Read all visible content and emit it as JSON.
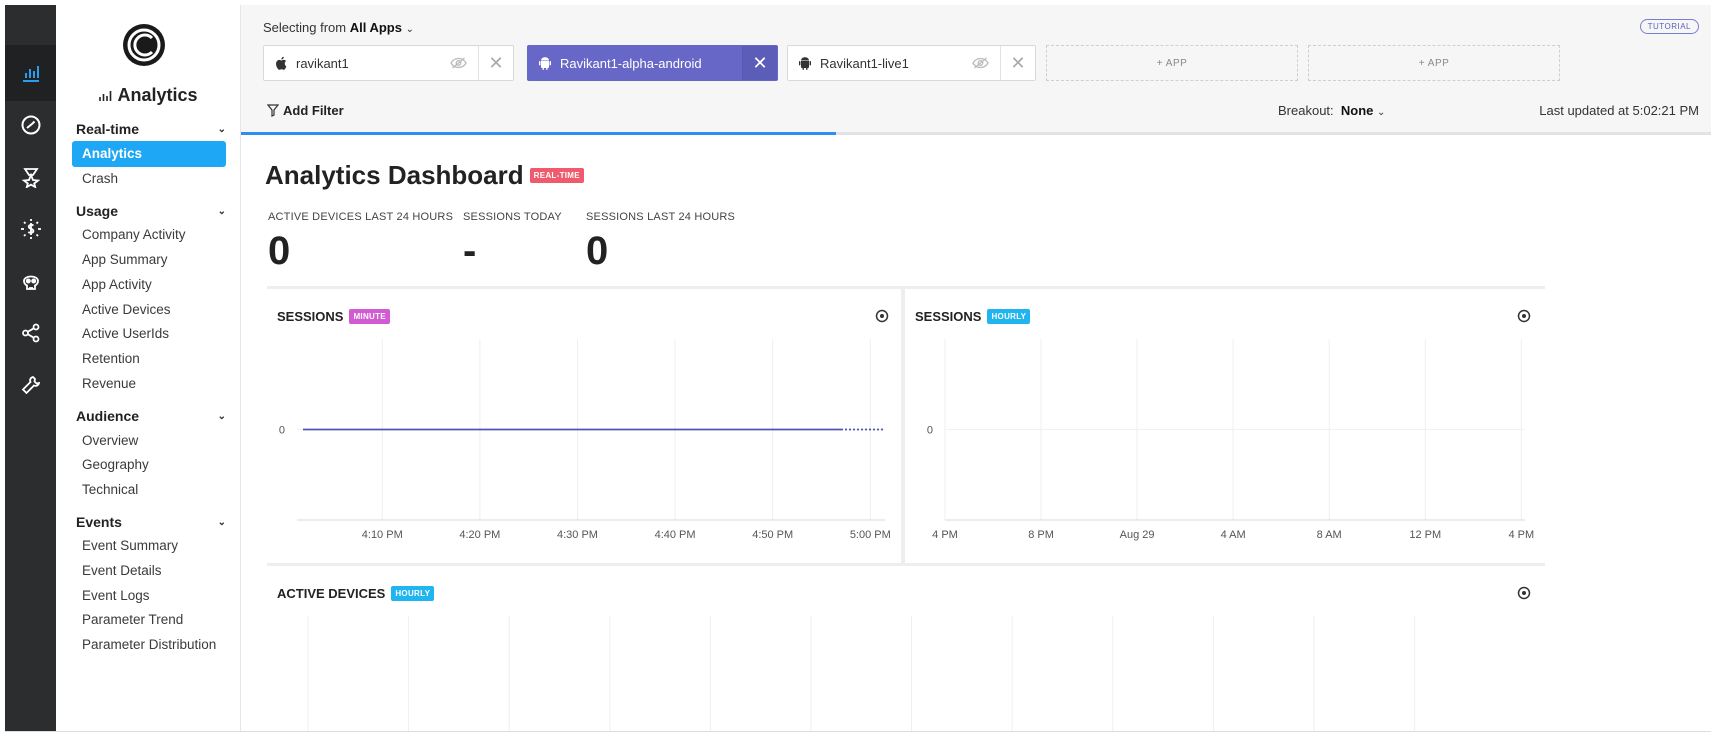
{
  "rail": {
    "items": [
      {
        "name": "analytics-icon",
        "active": true
      },
      {
        "name": "compass-icon",
        "active": false
      },
      {
        "name": "badge-icon",
        "active": false
      },
      {
        "name": "sun-dollar-icon",
        "active": false
      },
      {
        "name": "skull-icon",
        "active": false
      },
      {
        "name": "share-icon",
        "active": false
      },
      {
        "name": "wrench-icon",
        "active": false
      }
    ]
  },
  "sidebar": {
    "brand": "Analytics",
    "sections": [
      {
        "label": "Real-time",
        "items": [
          "Analytics",
          "Crash"
        ]
      },
      {
        "label": "Usage",
        "items": [
          "Company Activity",
          "App Summary",
          "App Activity",
          "Active Devices",
          "Active UserIds",
          "Retention",
          "Revenue"
        ]
      },
      {
        "label": "Audience",
        "items": [
          "Overview",
          "Geography",
          "Technical"
        ]
      },
      {
        "label": "Events",
        "items": [
          "Event Summary",
          "Event Details",
          "Event Logs",
          "Parameter Trend",
          "Parameter Distribution"
        ]
      }
    ],
    "active_item": "Analytics"
  },
  "topbar": {
    "selecting_prefix": "Selecting from",
    "selecting_value": "All Apps",
    "tutorial": "TUTORIAL",
    "apps": [
      {
        "name": "ravikant1",
        "os": "apple",
        "selected": false,
        "hidden": true
      },
      {
        "name": "Ravikant1-alpha-android",
        "os": "android",
        "selected": true,
        "hidden": false
      },
      {
        "name": "Ravikant1-live1",
        "os": "android",
        "selected": false,
        "hidden": true
      }
    ],
    "add_app_labels": [
      "+ APP",
      "+ APP"
    ],
    "add_filter": "Add Filter",
    "breakout_label": "Breakout:",
    "breakout_value": "None",
    "last_updated": "Last updated at 5:02:21 PM",
    "progress": 0.405
  },
  "dashboard": {
    "title": "Analytics Dashboard",
    "title_badge": "REAL-TIME",
    "stats": [
      {
        "label": "ACTIVE DEVICES LAST 24 HOURS",
        "value": "0"
      },
      {
        "label": "SESSIONS TODAY",
        "value": "-"
      },
      {
        "label": "SESSIONS LAST 24 HOURS",
        "value": "0"
      }
    ]
  },
  "cards": {
    "sessions_minute": {
      "title": "SESSIONS",
      "badge": "MINUTE"
    },
    "sessions_hourly": {
      "title": "SESSIONS",
      "badge": "HOURLY"
    },
    "active_devices": {
      "title": "ACTIVE DEVICES",
      "badge": "HOURLY"
    }
  },
  "chart_data": [
    {
      "type": "line",
      "title": "SESSIONS",
      "granularity": "MINUTE",
      "x": [
        "4:10 PM",
        "4:20 PM",
        "4:30 PM",
        "4:40 PM",
        "4:50 PM",
        "5:00 PM"
      ],
      "series": [
        {
          "values": [
            0,
            0,
            0,
            0,
            0,
            0
          ],
          "color": "#5255b5"
        }
      ],
      "yticks": [
        "0"
      ],
      "grid": true
    },
    {
      "type": "line",
      "title": "SESSIONS",
      "granularity": "HOURLY",
      "x": [
        "4 PM",
        "8 PM",
        "Aug 29",
        "4 AM",
        "8 AM",
        "12 PM",
        "4 PM"
      ],
      "series": [],
      "yticks": [
        "0"
      ],
      "grid": true
    }
  ]
}
